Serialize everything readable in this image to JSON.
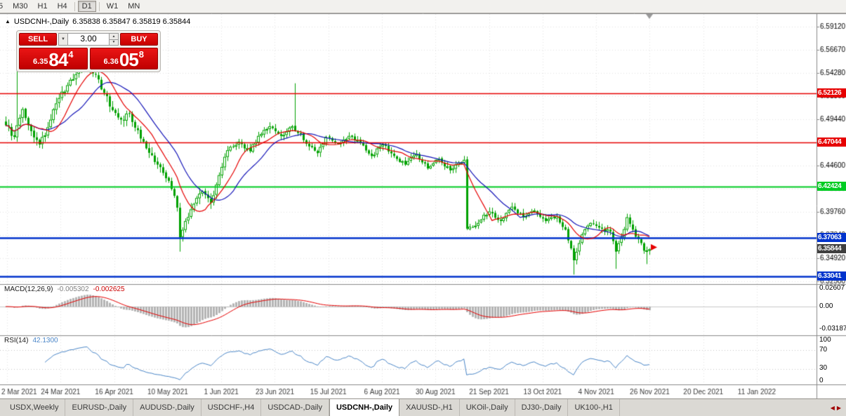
{
  "toolbar": {
    "timeframes": [
      "5",
      "M30",
      "H1",
      "H4",
      "D1",
      "W1",
      "MN"
    ],
    "active": "D1"
  },
  "title": {
    "symbol": "USDCNH-,Daily",
    "ohlc": "6.35838 6.35847 6.35819 6.35844"
  },
  "trade_panel": {
    "sell_label": "SELL",
    "buy_label": "BUY",
    "volume": "3.00",
    "sell_price_main": "6.35",
    "sell_price_big": "84",
    "sell_price_pip": "4",
    "buy_price_main": "6.36",
    "buy_price_big": "05",
    "buy_price_pip": "8"
  },
  "price_axis": {
    "ticks": [
      "6.59120",
      "6.56670",
      "6.54280",
      "6.51860",
      "6.49440",
      "6.47020",
      "6.44600",
      "6.42180",
      "6.39760",
      "6.37340",
      "6.34920",
      "6.32500"
    ]
  },
  "levels": [
    {
      "label": "6.52126",
      "price": 6.52126,
      "color": "#e60000",
      "width": 1.6
    },
    {
      "label": "6.47044",
      "price": 6.47044,
      "color": "#e60000",
      "width": 1.6
    },
    {
      "label": "6.42424",
      "price": 6.42424,
      "color": "#00cc22",
      "width": 2
    },
    {
      "label": "6.37063",
      "price": 6.37063,
      "color": "#0033cc",
      "width": 2.4
    },
    {
      "label": "6.33041",
      "price": 6.33041,
      "color": "#0033cc",
      "width": 2.4
    }
  ],
  "current_price": {
    "label": "6.35844",
    "value": 6.35844,
    "color": "#3f3f3f"
  },
  "macd": {
    "label": "MACD(12,26,9)",
    "value_main": "-0.005302",
    "value_signal": "-0.002625",
    "axis": [
      "0.02607",
      "0.00",
      "-0.03187"
    ]
  },
  "rsi": {
    "label": "RSI(14)",
    "value": "42.1300",
    "axis": [
      "100",
      "70",
      "30",
      "0"
    ],
    "levels": [
      70,
      30
    ]
  },
  "dates": [
    "2 Mar 2021",
    "24 Mar 2021",
    "16 Apr 2021",
    "10 May 2021",
    "1 Jun 2021",
    "23 Jun 2021",
    "15 Jul 2021",
    "6 Aug 2021",
    "30 Aug 2021",
    "21 Sep 2021",
    "13 Oct 2021",
    "4 Nov 2021",
    "26 Nov 2021",
    "20 Dec 2021",
    "11 Jan 2022"
  ],
  "tabs": {
    "items": [
      "USDX,Weekly",
      "EURUSD-,Daily",
      "AUDUSD-,Daily",
      "USDCHF-,H4",
      "USDCAD-,Daily",
      "USDCNH-,Daily",
      "XAUUSD-,H1",
      "UKOil-,Daily",
      "DJ30-,Daily",
      "UK100-,H1"
    ],
    "active_index": 5
  },
  "chart_data": {
    "type": "candlestick",
    "symbol": "USDCNH-",
    "timeframe": "Daily",
    "n_candles": 230,
    "last_close": 6.35844,
    "price_range": {
      "min": 6.3252,
      "max": 6.5912
    },
    "noise_seed": 20220114,
    "close_anchors": [
      [
        0,
        6.488
      ],
      [
        3,
        6.476
      ],
      [
        6,
        6.505
      ],
      [
        9,
        6.482
      ],
      [
        12,
        6.468
      ],
      [
        15,
        6.486
      ],
      [
        18,
        6.511
      ],
      [
        22,
        6.53
      ],
      [
        26,
        6.546
      ],
      [
        29,
        6.554
      ],
      [
        32,
        6.541
      ],
      [
        35,
        6.522
      ],
      [
        38,
        6.504
      ],
      [
        41,
        6.494
      ],
      [
        44,
        6.5
      ],
      [
        47,
        6.483
      ],
      [
        50,
        6.464
      ],
      [
        54,
        6.447
      ],
      [
        58,
        6.43
      ],
      [
        61,
        6.402
      ],
      [
        62,
        6.371
      ],
      [
        64,
        6.388
      ],
      [
        67,
        6.406
      ],
      [
        70,
        6.419
      ],
      [
        73,
        6.407
      ],
      [
        76,
        6.436
      ],
      [
        79,
        6.462
      ],
      [
        83,
        6.471
      ],
      [
        87,
        6.461
      ],
      [
        90,
        6.477
      ],
      [
        94,
        6.487
      ],
      [
        98,
        6.477
      ],
      [
        102,
        6.487
      ],
      [
        105,
        6.479
      ],
      [
        108,
        6.466
      ],
      [
        111,
        6.459
      ],
      [
        114,
        6.476
      ],
      [
        118,
        6.469
      ],
      [
        122,
        6.477
      ],
      [
        126,
        6.47
      ],
      [
        130,
        6.456
      ],
      [
        134,
        6.468
      ],
      [
        138,
        6.456
      ],
      [
        142,
        6.447
      ],
      [
        146,
        6.458
      ],
      [
        150,
        6.443
      ],
      [
        154,
        6.453
      ],
      [
        158,
        6.441
      ],
      [
        163,
        6.452
      ],
      [
        164,
        6.38
      ],
      [
        168,
        6.386
      ],
      [
        172,
        6.398
      ],
      [
        176,
        6.388
      ],
      [
        180,
        6.403
      ],
      [
        184,
        6.392
      ],
      [
        188,
        6.399
      ],
      [
        192,
        6.388
      ],
      [
        196,
        6.393
      ],
      [
        199,
        6.379
      ],
      [
        202,
        6.347
      ],
      [
        205,
        6.374
      ],
      [
        208,
        6.386
      ],
      [
        212,
        6.38
      ],
      [
        215,
        6.377
      ],
      [
        217,
        6.356
      ],
      [
        219,
        6.371
      ],
      [
        221,
        6.392
      ],
      [
        223,
        6.379
      ],
      [
        225,
        6.369
      ],
      [
        227,
        6.357
      ],
      [
        229,
        6.35844
      ]
    ],
    "wick_events": [
      {
        "i": 4,
        "high": 6.556
      },
      {
        "i": 29,
        "high": 6.568
      },
      {
        "i": 62,
        "low": 6.356
      },
      {
        "i": 103,
        "high": 6.532
      },
      {
        "i": 202,
        "low": 6.332
      },
      {
        "i": 217,
        "low": 6.338
      },
      {
        "i": 228,
        "low": 6.343
      }
    ],
    "moving_averages": [
      {
        "period": 10,
        "color": "#e60000"
      },
      {
        "period": 20,
        "color": "#1414b8"
      }
    ],
    "macd": {
      "fast": 12,
      "slow": 26,
      "signal": 9
    },
    "rsi_period": 14,
    "colors": {
      "candle": "#00a100",
      "candle_bull_fill": "#ffffff",
      "macd_hist": "#b4b4b4",
      "macd_signal": "#e60000",
      "rsi_line": "#4a86c8"
    }
  }
}
